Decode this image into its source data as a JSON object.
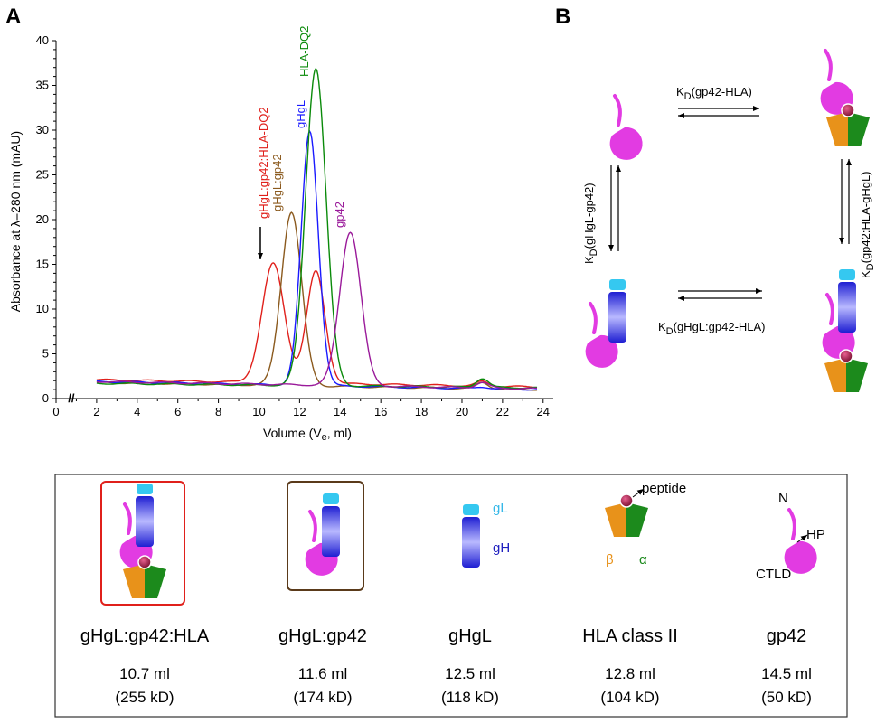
{
  "panel_a": {
    "letter": "A"
  },
  "panel_b": {
    "letter": "B"
  },
  "chart_data": {
    "type": "line",
    "xlabel": "Volume (V",
    "xlabel_sub": "e",
    "xlabel_tail": ", ml)",
    "ylabel": "Absorbance at λ=280 nm (mAU)",
    "xlim": [
      0,
      24.5
    ],
    "ylim": [
      0,
      40
    ],
    "x_ticks": [
      "0",
      "2",
      "4",
      "6",
      "8",
      "10",
      "12",
      "14",
      "16",
      "18",
      "20",
      "22",
      "24"
    ],
    "y_ticks": [
      "0",
      "5",
      "10",
      "15",
      "20",
      "25",
      "30",
      "35",
      "40"
    ],
    "axis_break": "//",
    "series": [
      {
        "name": "gHgL:gp42:HLA-DQ2",
        "color": "#e0201b",
        "baseline": [
          2.1,
          1.3
        ],
        "peaks": [
          [
            10.7,
            13.3,
            0.55
          ],
          [
            12.8,
            12.5,
            0.45
          ]
        ],
        "bumps": [
          [
            21.0,
            0.5,
            0.3
          ]
        ]
      },
      {
        "name": "gHgL:gp42",
        "color": "#8b5a1e",
        "baseline": [
          1.8,
          1.0
        ],
        "peaks": [
          [
            11.6,
            19.4,
            0.5
          ]
        ],
        "bumps": [
          [
            21.0,
            0.7,
            0.3
          ]
        ]
      },
      {
        "name": "gHgL",
        "color": "#1a1aff",
        "baseline": [
          1.9,
          1.0
        ],
        "peaks": [
          [
            12.5,
            28.4,
            0.42
          ]
        ],
        "bumps": [
          [
            21.0,
            0.2,
            0.3
          ]
        ]
      },
      {
        "name": "HLA-DQ2",
        "color": "#0a8a0a",
        "baseline": [
          1.7,
          1.2
        ],
        "peaks": [
          [
            12.8,
            35.5,
            0.5
          ]
        ],
        "bumps": [
          [
            21.0,
            1.0,
            0.3
          ]
        ]
      },
      {
        "name": "gp42",
        "color": "#9a1a9a",
        "baseline": [
          1.9,
          1.1
        ],
        "peaks": [
          [
            14.5,
            17.2,
            0.52
          ]
        ],
        "bumps": [
          [
            21.0,
            0.6,
            0.3
          ]
        ]
      }
    ]
  },
  "kinetics": {
    "k": "K",
    "d": "D",
    "top": "(gp42-HLA)",
    "bottom": "(gHgL:gp42-HLA)",
    "left": "(gHgL-gp42)",
    "right": "(gp42:HLA-gHgL)"
  },
  "legend": {
    "items": [
      {
        "name": "gHgL:gp42:HLA",
        "volume": "10.7 ml",
        "mass": "(255 kD)",
        "frame_color": "#e0201b"
      },
      {
        "name": "gHgL:gp42",
        "volume": "11.6 ml",
        "mass": "(174 kD)",
        "frame_color": "#5a3a1a"
      },
      {
        "name": "gHgL",
        "volume": "12.5 ml",
        "mass": "(118 kD)"
      },
      {
        "name": "HLA class II",
        "volume": "12.8 ml",
        "mass": "(104 kD)"
      },
      {
        "name": "gp42",
        "volume": "14.5 ml",
        "mass": "(50 kD)"
      }
    ],
    "labels": {
      "gl": "gL",
      "gh": "gH",
      "peptide": "peptide",
      "beta": "β",
      "alpha": "α",
      "n": "N",
      "hp": "HP",
      "ctld": "CTLD"
    }
  },
  "colors": {
    "gp42": "#e23be2",
    "gl": "#35c8f0",
    "gh_top": "#2323d8",
    "gh_mid": "#b9b9ff",
    "hla_beta": "#e8921a",
    "hla_alpha": "#1c8a1c",
    "peptide": "#a6204a"
  }
}
